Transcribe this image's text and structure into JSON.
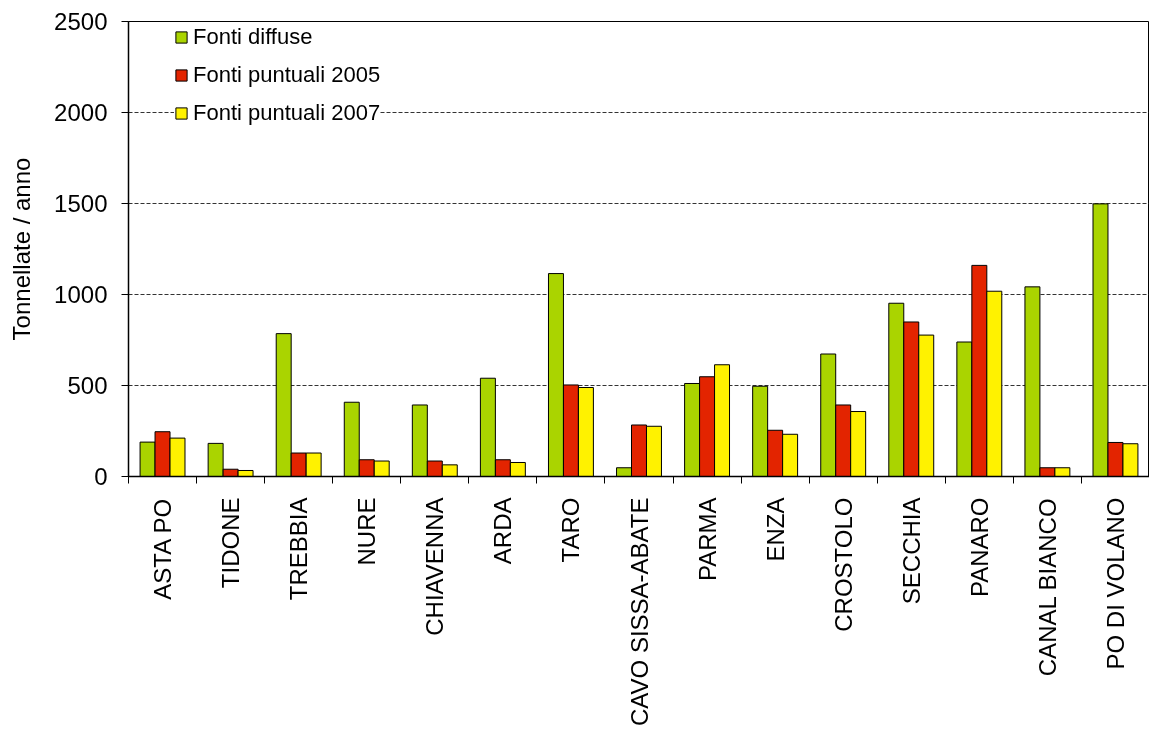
{
  "chart_data": {
    "type": "bar",
    "ylabel": "Tonnellate / anno",
    "categories": [
      "ASTA PO",
      "TIDONE",
      "TREBBIA",
      "NURE",
      "CHIAVENNA",
      "ARDA",
      "TARO",
      "CAVO SISSA-ABATE",
      "PARMA",
      "ENZA",
      "CROSTOLO",
      "SECCHIA",
      "PANARO",
      "CANAL BIANCO",
      "PO DI VOLANO"
    ],
    "series": [
      {
        "name": "Fonti diffuse",
        "color": "#aad400",
        "values": [
          189,
          182,
          785,
          408,
          393,
          540,
          1115,
          48,
          511,
          496,
          673,
          952,
          739,
          1042,
          1498
        ]
      },
      {
        "name": "Fonti puntuali 2005",
        "color": "#e32400",
        "values": [
          246,
          40,
          129,
          92,
          85,
          92,
          503,
          283,
          548,
          254,
          393,
          849,
          1160,
          48,
          187
        ]
      },
      {
        "name": "Fonti puntuali 2007",
        "color": "#fff200",
        "values": [
          211,
          33,
          129,
          85,
          64,
          77,
          489,
          276,
          614,
          232,
          357,
          777,
          1018,
          48,
          180
        ]
      }
    ],
    "ylim": [
      0,
      2500
    ],
    "yticks": [
      0,
      500,
      1000,
      1500,
      2000,
      2500
    ],
    "grid": "y",
    "legend": "top left"
  }
}
